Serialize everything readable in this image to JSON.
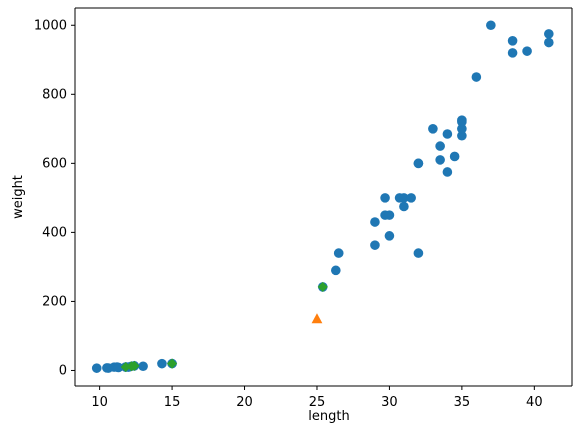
{
  "chart_data": {
    "type": "scatter",
    "title": "",
    "xlabel": "length",
    "ylabel": "weight",
    "xlim": [
      8.3,
      42.6
    ],
    "ylim": [
      -45,
      1050
    ],
    "x_ticks": [
      10,
      15,
      20,
      25,
      30,
      35,
      40
    ],
    "y_ticks": [
      0,
      200,
      400,
      600,
      800,
      1000
    ],
    "x_tick_labels": [
      "10",
      "15",
      "20",
      "25",
      "30",
      "35",
      "40"
    ],
    "y_tick_labels": [
      "0",
      "200",
      "400",
      "600",
      "800",
      "1000"
    ],
    "grid": false,
    "legend": false,
    "series": [
      {
        "marker": "circle",
        "color": "#1f77b4",
        "points": [
          [
            9.8,
            6.7
          ],
          [
            10.5,
            7.5
          ],
          [
            10.6,
            7.0
          ],
          [
            11.0,
            9.7
          ],
          [
            11.2,
            9.8
          ],
          [
            11.3,
            8.7
          ],
          [
            11.8,
            10.0
          ],
          [
            11.8,
            9.9
          ],
          [
            12.0,
            9.8
          ],
          [
            12.2,
            12.2
          ],
          [
            12.4,
            13.4
          ],
          [
            13.0,
            12.2
          ],
          [
            14.3,
            19.7
          ],
          [
            15.0,
            19.9
          ],
          [
            25.4,
            242.0
          ],
          [
            26.3,
            290.0
          ],
          [
            26.5,
            340.0
          ],
          [
            29.0,
            363.0
          ],
          [
            29.0,
            430.0
          ],
          [
            29.7,
            450.0
          ],
          [
            29.7,
            500.0
          ],
          [
            30.0,
            390.0
          ],
          [
            30.0,
            450.0
          ],
          [
            30.7,
            500.0
          ],
          [
            31.0,
            475.0
          ],
          [
            31.0,
            500.0
          ],
          [
            31.5,
            500.0
          ],
          [
            32.0,
            340.0
          ],
          [
            32.0,
            600.0
          ],
          [
            32.0,
            600.0
          ],
          [
            33.0,
            700.0
          ],
          [
            33.5,
            650.0
          ],
          [
            33.5,
            610.0
          ],
          [
            34.0,
            685.0
          ],
          [
            34.0,
            575.0
          ],
          [
            34.5,
            620.0
          ],
          [
            35.0,
            680.0
          ],
          [
            35.0,
            700.0
          ],
          [
            35.0,
            725.0
          ],
          [
            35.0,
            720.0
          ],
          [
            36.0,
            850.0
          ],
          [
            37.0,
            1000.0
          ],
          [
            38.5,
            920.0
          ],
          [
            38.5,
            955.0
          ],
          [
            39.5,
            925.0
          ],
          [
            41.0,
            975.0
          ],
          [
            41.0,
            950.0
          ]
        ]
      },
      {
        "marker": "triangle",
        "color": "#ff7f0e",
        "points": [
          [
            25.0,
            150.0
          ]
        ]
      },
      {
        "marker": "diamond",
        "color": "#2ca02c",
        "points": [
          [
            25.4,
            242.0
          ],
          [
            15.0,
            19.9
          ],
          [
            12.4,
            13.4
          ],
          [
            12.2,
            12.2
          ],
          [
            11.8,
            9.9
          ]
        ]
      }
    ]
  }
}
